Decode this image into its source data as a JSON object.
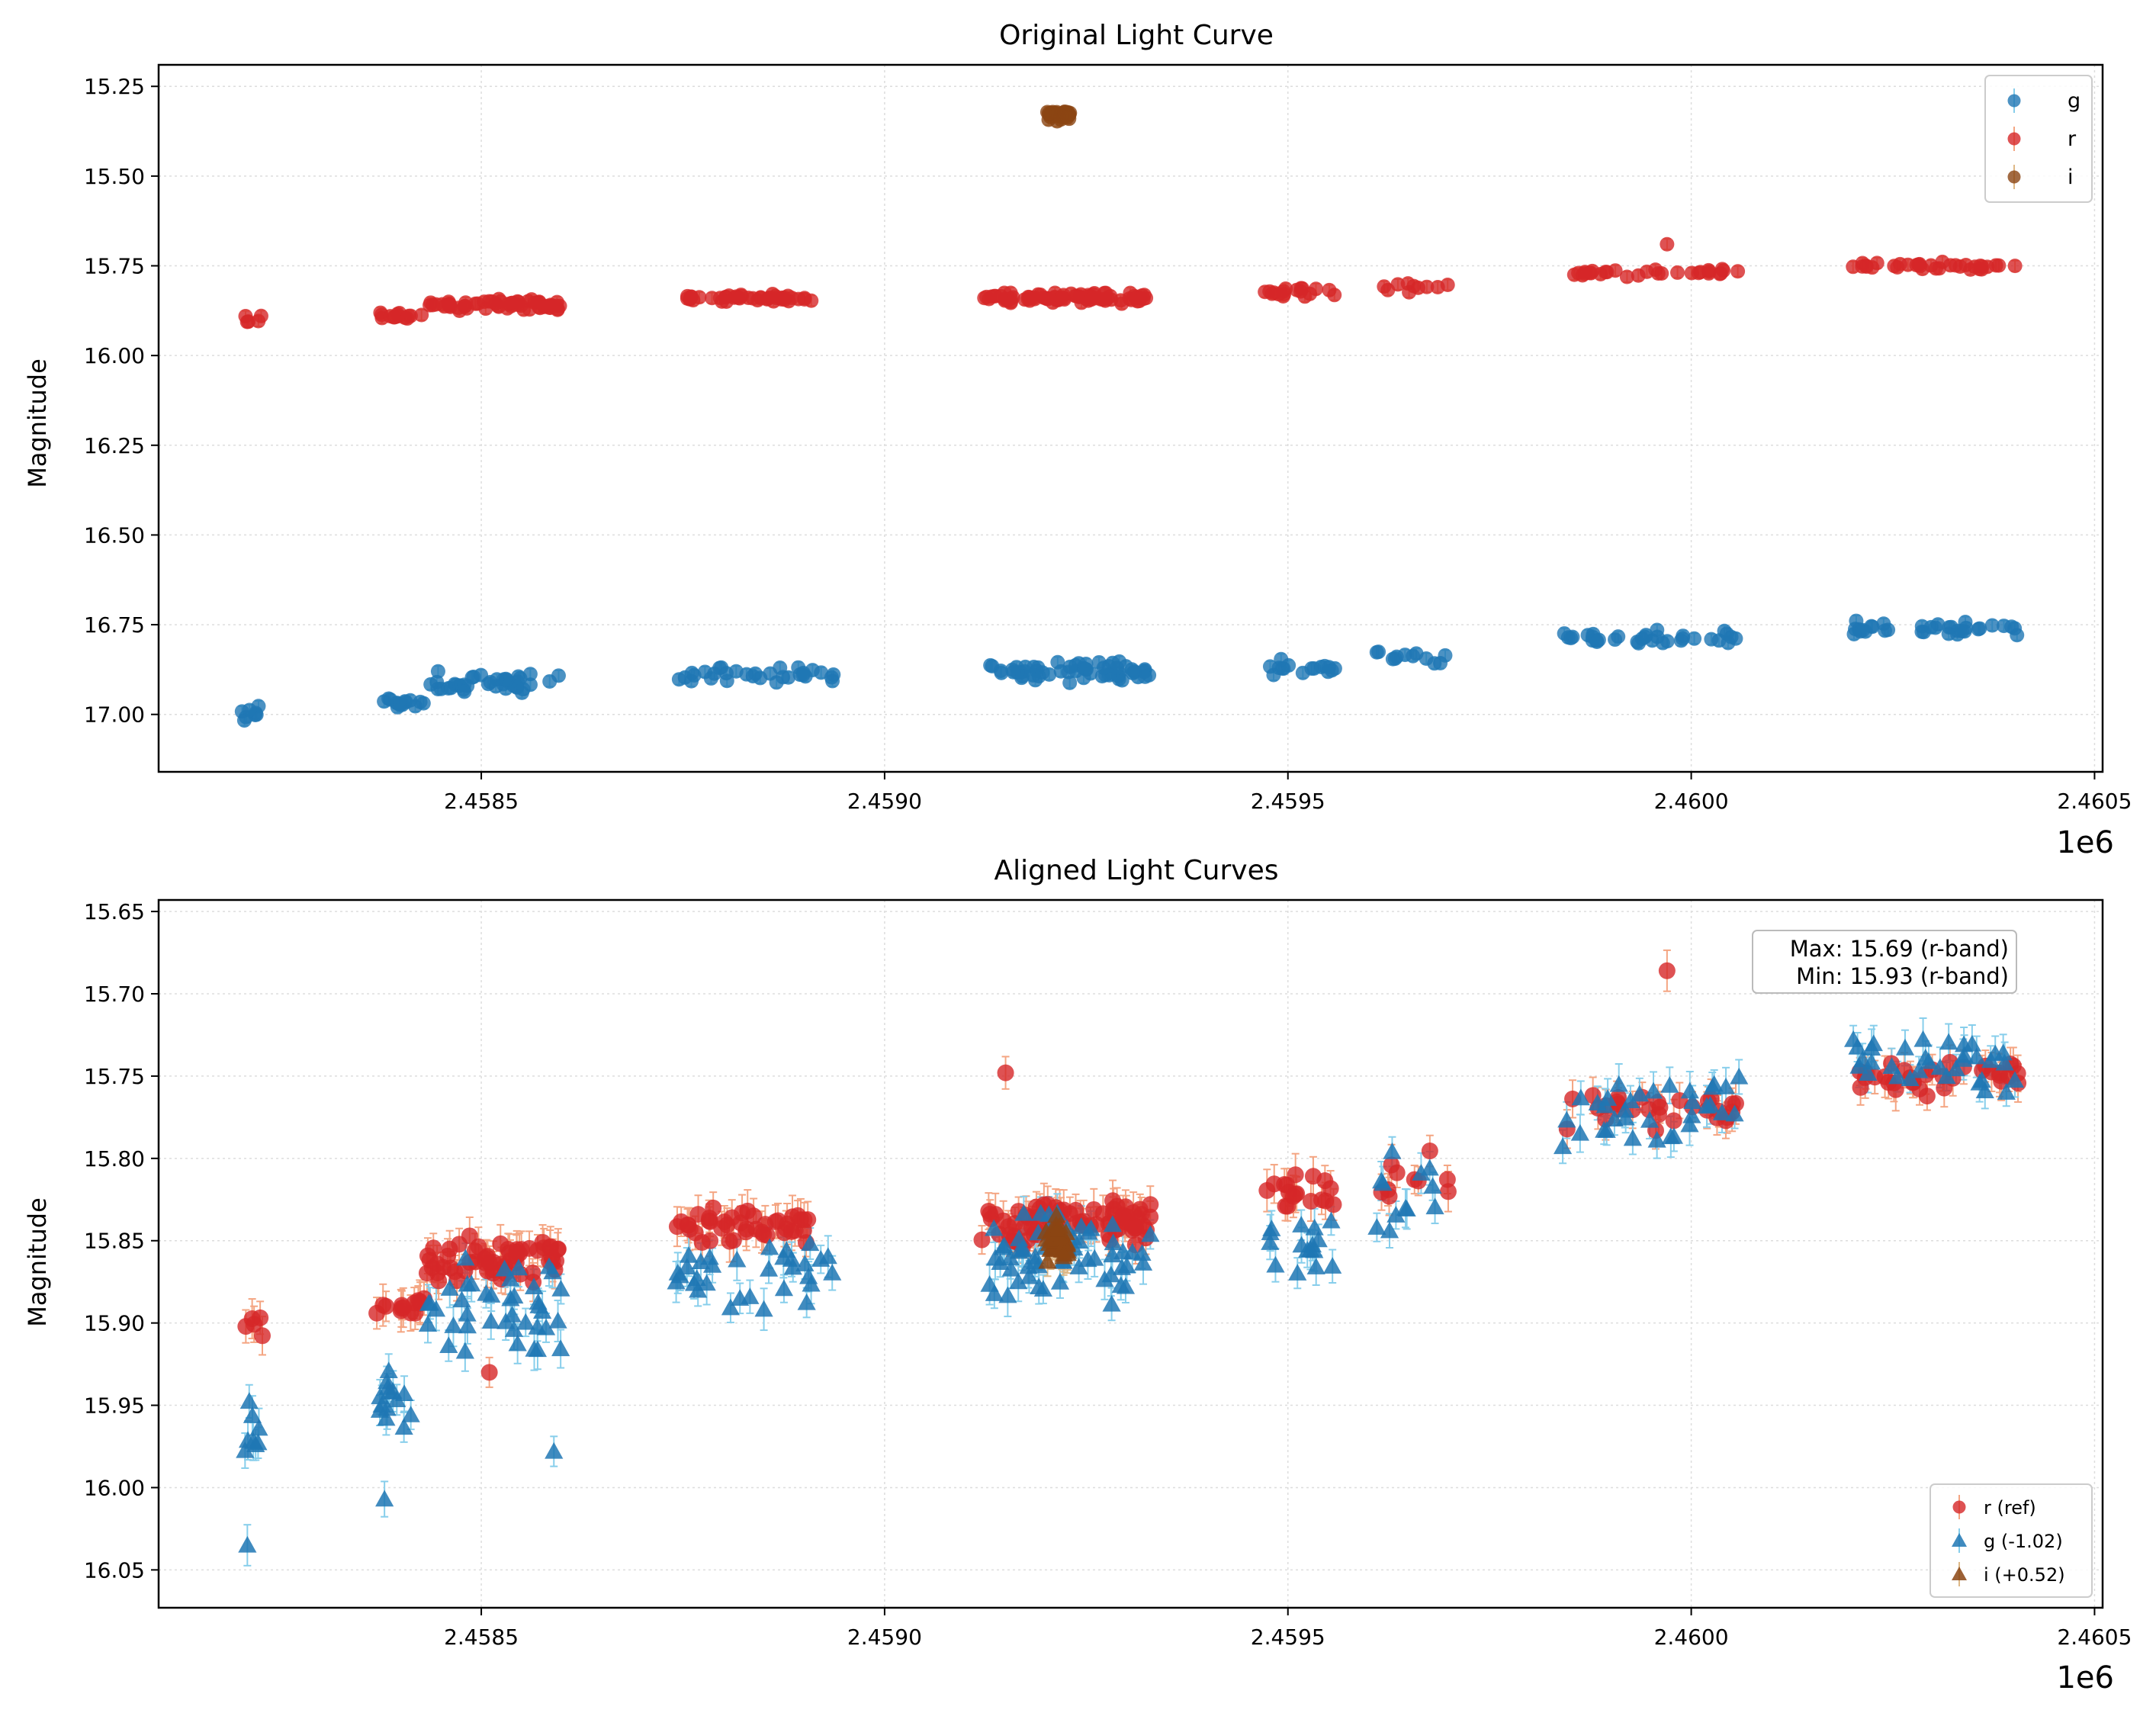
{
  "chart_data": [
    {
      "type": "scatter",
      "title": "Original Light Curve",
      "xlabel": "",
      "ylabel": "Magnitude",
      "x_offset_text": "1e6",
      "xlim": [
        2458100,
        2460510
      ],
      "ylim": [
        17.16,
        15.19
      ],
      "y_inverted": true,
      "xticks": [
        2458500,
        2459000,
        2459500,
        2460000,
        2460500
      ],
      "xtick_labels": [
        "2.4585",
        "2.4590",
        "2.4595",
        "2.4600",
        "2.4605"
      ],
      "yticks": [
        15.25,
        15.5,
        15.75,
        16.0,
        16.25,
        16.5,
        16.75,
        17.0
      ],
      "ytick_labels": [
        "15.25",
        "15.50",
        "15.75",
        "16.00",
        "16.25",
        "16.50",
        "16.75",
        "17.00"
      ],
      "grid": true,
      "legend_position": "top-right",
      "series": [
        {
          "name": "g",
          "color": "#1f77b4",
          "marker": "circle",
          "errcolor": "#87ceeb",
          "clusters": [
            {
              "x0": 2458200,
              "x1": 2458230,
              "y": 16.99,
              "spread": 0.04,
              "n": 8
            },
            {
              "x0": 2458370,
              "x1": 2458430,
              "y": 16.97,
              "spread": 0.03,
              "n": 14
            },
            {
              "x0": 2458430,
              "x1": 2458600,
              "y": 16.91,
              "spread": 0.04,
              "n": 40
            },
            {
              "x0": 2458740,
              "x1": 2458940,
              "y": 16.89,
              "spread": 0.03,
              "n": 32
            },
            {
              "x0": 2459130,
              "x1": 2459330,
              "y": 16.88,
              "spread": 0.04,
              "n": 60
            },
            {
              "x0": 2459470,
              "x1": 2459560,
              "y": 16.87,
              "spread": 0.03,
              "n": 16
            },
            {
              "x0": 2459610,
              "x1": 2459700,
              "y": 16.84,
              "spread": 0.04,
              "n": 12
            },
            {
              "x0": 2459840,
              "x1": 2460060,
              "y": 16.79,
              "spread": 0.03,
              "n": 34
            },
            {
              "x0": 2460200,
              "x1": 2460410,
              "y": 16.76,
              "spread": 0.03,
              "n": 34
            }
          ]
        },
        {
          "name": "r",
          "color": "#d62728",
          "marker": "circle",
          "errcolor": "#f4a582",
          "clusters": [
            {
              "x0": 2458200,
              "x1": 2458230,
              "y": 15.9,
              "spread": 0.02,
              "n": 5
            },
            {
              "x0": 2458370,
              "x1": 2458430,
              "y": 15.89,
              "spread": 0.015,
              "n": 14
            },
            {
              "x0": 2458430,
              "x1": 2458600,
              "y": 15.86,
              "spread": 0.02,
              "n": 60
            },
            {
              "x0": 2458740,
              "x1": 2458910,
              "y": 15.84,
              "spread": 0.015,
              "n": 44
            },
            {
              "x0": 2459120,
              "x1": 2459330,
              "y": 15.84,
              "spread": 0.02,
              "n": 80
            },
            {
              "x0": 2459470,
              "x1": 2459560,
              "y": 15.82,
              "spread": 0.02,
              "n": 18
            },
            {
              "x0": 2459610,
              "x1": 2459700,
              "y": 15.81,
              "spread": 0.02,
              "n": 10
            },
            {
              "x0": 2459840,
              "x1": 2460060,
              "y": 15.77,
              "spread": 0.015,
              "n": 30
            },
            {
              "x0": 2460200,
              "x1": 2460410,
              "y": 15.75,
              "spread": 0.015,
              "n": 34
            }
          ],
          "points": [
            [
              2459970,
              15.69
            ]
          ]
        },
        {
          "name": "i",
          "color": "#8b4513",
          "marker": "circle",
          "errcolor": "#deb887",
          "clusters": [
            {
              "x0": 2459200,
              "x1": 2459230,
              "y": 15.33,
              "spread": 0.02,
              "n": 30
            }
          ]
        }
      ]
    },
    {
      "type": "scatter",
      "title": "Aligned Light Curves",
      "xlabel": "",
      "ylabel": "Magnitude",
      "x_offset_text": "1e6",
      "xlim": [
        2458100,
        2460510
      ],
      "ylim": [
        16.073,
        15.643
      ],
      "y_inverted": true,
      "xticks": [
        2458500,
        2459000,
        2459500,
        2460000,
        2460500
      ],
      "xtick_labels": [
        "2.4585",
        "2.4590",
        "2.4595",
        "2.4600",
        "2.4605"
      ],
      "yticks": [
        15.65,
        15.7,
        15.75,
        15.8,
        15.85,
        15.9,
        15.95,
        16.0,
        16.05
      ],
      "ytick_labels": [
        "15.65",
        "15.70",
        "15.75",
        "15.80",
        "15.85",
        "15.90",
        "15.95",
        "16.00",
        "16.05"
      ],
      "grid": true,
      "legend_position": "bottom-right",
      "annotation": {
        "lines": [
          "Max: 15.69 (r-band)",
          "Min: 15.93 (r-band)"
        ],
        "position": "top-right"
      },
      "series": [
        {
          "name": "r (ref)",
          "color": "#d62728",
          "marker": "circle",
          "errcolor": "#f4a582",
          "clusters": [
            {
              "x0": 2458200,
              "x1": 2458230,
              "y": 15.9,
              "spread": 0.02,
              "n": 5
            },
            {
              "x0": 2458370,
              "x1": 2458430,
              "y": 15.89,
              "spread": 0.015,
              "n": 14
            },
            {
              "x0": 2458430,
              "x1": 2458600,
              "y": 15.86,
              "spread": 0.02,
              "n": 60
            },
            {
              "x0": 2458740,
              "x1": 2458910,
              "y": 15.84,
              "spread": 0.015,
              "n": 44
            },
            {
              "x0": 2459120,
              "x1": 2459330,
              "y": 15.84,
              "spread": 0.02,
              "n": 80
            },
            {
              "x0": 2459470,
              "x1": 2459560,
              "y": 15.82,
              "spread": 0.02,
              "n": 18
            },
            {
              "x0": 2459610,
              "x1": 2459700,
              "y": 15.81,
              "spread": 0.02,
              "n": 10
            },
            {
              "x0": 2459840,
              "x1": 2460060,
              "y": 15.77,
              "spread": 0.015,
              "n": 30
            },
            {
              "x0": 2460200,
              "x1": 2460410,
              "y": 15.75,
              "spread": 0.015,
              "n": 34
            }
          ],
          "points": [
            [
              2459970,
              15.686
            ],
            [
              2458510,
              15.93
            ],
            [
              2459150,
              15.748
            ]
          ]
        },
        {
          "name": "g (-1.02)",
          "color": "#1f77b4",
          "marker": "triangle",
          "errcolor": "#87ceeb",
          "clusters": [
            {
              "x0": 2458200,
              "x1": 2458230,
              "y": 15.97,
              "spread": 0.04,
              "n": 8
            },
            {
              "x0": 2458370,
              "x1": 2458430,
              "y": 15.95,
              "spread": 0.03,
              "n": 14
            },
            {
              "x0": 2458430,
              "x1": 2458600,
              "y": 15.89,
              "spread": 0.04,
              "n": 40
            },
            {
              "x0": 2458740,
              "x1": 2458940,
              "y": 15.87,
              "spread": 0.03,
              "n": 32
            },
            {
              "x0": 2459130,
              "x1": 2459330,
              "y": 15.86,
              "spread": 0.04,
              "n": 60
            },
            {
              "x0": 2459470,
              "x1": 2459560,
              "y": 15.85,
              "spread": 0.03,
              "n": 16
            },
            {
              "x0": 2459610,
              "x1": 2459700,
              "y": 15.82,
              "spread": 0.04,
              "n": 12
            },
            {
              "x0": 2459840,
              "x1": 2460060,
              "y": 15.77,
              "spread": 0.03,
              "n": 34
            },
            {
              "x0": 2460200,
              "x1": 2460410,
              "y": 15.74,
              "spread": 0.03,
              "n": 34
            }
          ],
          "points": [
            [
              2458210,
              16.035
            ],
            [
              2458380,
              16.007
            ],
            [
              2458590,
              15.978
            ]
          ]
        },
        {
          "name": "i (+0.52)",
          "color": "#8b4513",
          "marker": "triangle",
          "errcolor": "#deb887",
          "clusters": [
            {
              "x0": 2459200,
              "x1": 2459230,
              "y": 15.85,
              "spread": 0.02,
              "n": 30
            }
          ]
        }
      ]
    }
  ]
}
